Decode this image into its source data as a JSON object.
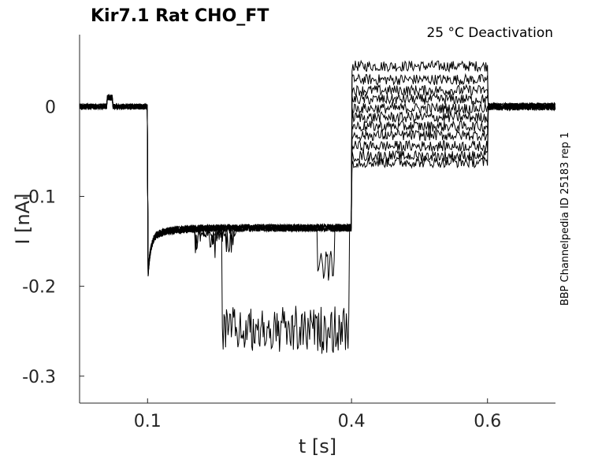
{
  "chart_data": {
    "type": "line",
    "title": "Kir7.1  Rat  CHO_FT",
    "subtitle": "25 °C  Deactivation",
    "side_label": "BBP Channelpedia ID 25183 rep 1",
    "xlabel": "t [s]",
    "ylabel": "I [nA]",
    "xlim": [
      0.0,
      0.7
    ],
    "ylim": [
      -0.33,
      0.08
    ],
    "xticks": [
      0.1,
      0.4,
      0.6
    ],
    "xtick_labels": [
      "0.1",
      "0.4",
      "0.6"
    ],
    "yticks": [
      0,
      -0.1,
      -0.2,
      -0.3
    ],
    "ytick_labels": [
      "0",
      "-0.1",
      "-0.2",
      "-0.3"
    ],
    "grid": false,
    "protocol_times": {
      "step_on": 0.1,
      "test_on": 0.4,
      "test_off": 0.6
    },
    "holding_current": 0.0,
    "prepulse_current": -0.135,
    "tail_currents": [
      0.045,
      0.03,
      0.018,
      0.008,
      -0.002,
      -0.012,
      -0.022,
      -0.032,
      -0.044,
      -0.055,
      -0.062
    ],
    "series_color": "#000000"
  }
}
